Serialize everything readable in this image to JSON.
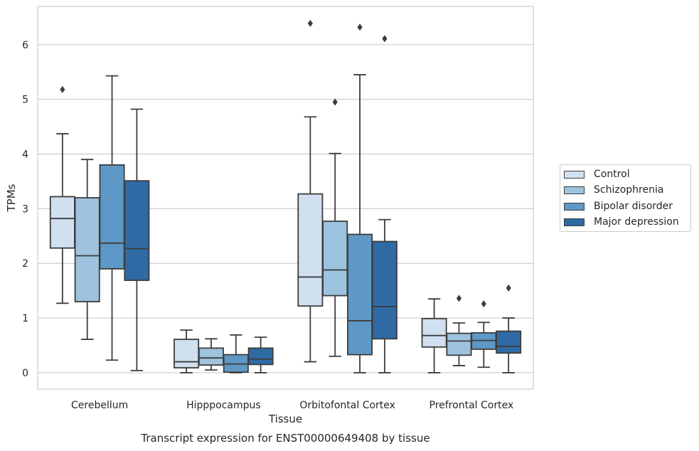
{
  "chart_data": {
    "type": "box",
    "title": "Transcript expression for ENST00000649408 by tissue",
    "xlabel": "Tissue",
    "ylabel": "TPMs",
    "ylim": [
      -0.3,
      6.7
    ],
    "yticks": [
      0,
      1,
      2,
      3,
      4,
      5,
      6
    ],
    "grid": "horizontal",
    "legend_position": "right",
    "categories": [
      "Cerebellum",
      "Hipppocampus",
      "Orbitofontal Cortex",
      "Prefrontal Cortex"
    ],
    "series": [
      {
        "name": "Control",
        "color": "#d0e0f0",
        "boxes": [
          {
            "whislo": 1.27,
            "q1": 2.28,
            "med": 2.82,
            "q3": 3.22,
            "whishi": 4.37,
            "fliers": [
              5.18
            ]
          },
          {
            "whislo": 0.0,
            "q1": 0.09,
            "med": 0.2,
            "q3": 0.61,
            "whishi": 0.78,
            "fliers": []
          },
          {
            "whislo": 0.2,
            "q1": 1.22,
            "med": 1.75,
            "q3": 3.27,
            "whishi": 4.68,
            "fliers": [
              6.39
            ]
          },
          {
            "whislo": 0.0,
            "q1": 0.47,
            "med": 0.68,
            "q3": 0.99,
            "whishi": 1.35,
            "fliers": []
          }
        ]
      },
      {
        "name": "Schizophrenia",
        "color": "#9dc3de",
        "boxes": [
          {
            "whislo": 0.61,
            "q1": 1.3,
            "med": 2.14,
            "q3": 3.2,
            "whishi": 3.9,
            "fliers": []
          },
          {
            "whislo": 0.05,
            "q1": 0.14,
            "med": 0.27,
            "q3": 0.45,
            "whishi": 0.62,
            "fliers": []
          },
          {
            "whislo": 0.3,
            "q1": 1.41,
            "med": 1.88,
            "q3": 2.77,
            "whishi": 4.01,
            "fliers": [
              4.95
            ]
          },
          {
            "whislo": 0.13,
            "q1": 0.32,
            "med": 0.58,
            "q3": 0.72,
            "whishi": 0.91,
            "fliers": [
              1.36
            ]
          }
        ]
      },
      {
        "name": "Bipolar disorder",
        "color": "#5e98c6",
        "boxes": [
          {
            "whislo": 0.23,
            "q1": 1.9,
            "med": 2.37,
            "q3": 3.8,
            "whishi": 5.43,
            "fliers": []
          },
          {
            "whislo": 0.0,
            "q1": 0.01,
            "med": 0.16,
            "q3": 0.33,
            "whishi": 0.69,
            "fliers": []
          },
          {
            "whislo": 0.0,
            "q1": 0.33,
            "med": 0.95,
            "q3": 2.53,
            "whishi": 5.45,
            "fliers": [
              6.32
            ]
          },
          {
            "whislo": 0.1,
            "q1": 0.43,
            "med": 0.59,
            "q3": 0.73,
            "whishi": 0.92,
            "fliers": [
              1.26
            ]
          }
        ]
      },
      {
        "name": "Major depression",
        "color": "#2f6aa4",
        "boxes": [
          {
            "whislo": 0.04,
            "q1": 1.69,
            "med": 2.27,
            "q3": 3.51,
            "whishi": 4.82,
            "fliers": []
          },
          {
            "whislo": 0.0,
            "q1": 0.15,
            "med": 0.25,
            "q3": 0.45,
            "whishi": 0.65,
            "fliers": []
          },
          {
            "whislo": 0.0,
            "q1": 0.62,
            "med": 1.21,
            "q3": 2.4,
            "whishi": 2.8,
            "fliers": [
              6.11
            ]
          },
          {
            "whislo": 0.0,
            "q1": 0.36,
            "med": 0.48,
            "q3": 0.76,
            "whishi": 1.0,
            "fliers": [
              1.55
            ]
          }
        ]
      }
    ]
  }
}
